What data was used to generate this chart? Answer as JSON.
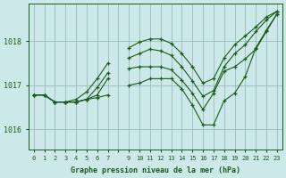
{
  "xlabel": "Graphe pression niveau de la mer (hPa)",
  "background_color": "#cce8e8",
  "grid_color": "#99bbbb",
  "line_color": "#1a5c1a",
  "xlim": [
    -0.5,
    23.5
  ],
  "ylim": [
    1015.55,
    1018.85
  ],
  "yticks": [
    1016,
    1017,
    1018
  ],
  "xtick_labels": [
    "0",
    "1",
    "2",
    "3",
    "4",
    "5",
    "6",
    "7",
    "",
    "9",
    "10",
    "11",
    "12",
    "13",
    "14",
    "15",
    "16",
    "17",
    "18",
    "19",
    "20",
    "21",
    "22",
    "23"
  ],
  "series": [
    [
      1016.78,
      1016.78,
      1016.62,
      1016.62,
      1016.62,
      1016.68,
      1016.72,
      1016.78,
      null,
      1017.0,
      1017.05,
      1017.15,
      1017.15,
      1017.15,
      1016.92,
      1016.55,
      1016.1,
      1016.1,
      1016.65,
      1016.82,
      1017.2,
      1017.85,
      1018.25,
      1018.62
    ],
    [
      1016.78,
      1016.78,
      1016.62,
      1016.62,
      1016.62,
      1016.68,
      1016.78,
      1017.15,
      null,
      1017.38,
      1017.42,
      1017.42,
      1017.42,
      1017.35,
      1017.12,
      1016.82,
      1016.45,
      1016.82,
      1017.32,
      1017.42,
      1017.6,
      1017.82,
      1018.22,
      1018.62
    ],
    [
      1016.78,
      1016.78,
      1016.62,
      1016.62,
      1016.62,
      1016.68,
      1016.95,
      1017.28,
      null,
      1017.62,
      1017.72,
      1017.82,
      1017.78,
      1017.68,
      1017.42,
      1017.1,
      1016.75,
      1016.88,
      1017.42,
      1017.72,
      1017.92,
      1018.22,
      1018.48,
      1018.68
    ],
    [
      1016.78,
      1016.78,
      1016.62,
      1016.62,
      1016.68,
      1016.85,
      1017.15,
      1017.5,
      null,
      1017.85,
      1017.98,
      1018.05,
      1018.05,
      1017.95,
      1017.72,
      1017.42,
      1017.05,
      1017.15,
      1017.62,
      1017.92,
      1018.12,
      1018.32,
      1018.55,
      1018.68
    ]
  ],
  "figsize": [
    3.2,
    2.0
  ],
  "dpi": 100
}
